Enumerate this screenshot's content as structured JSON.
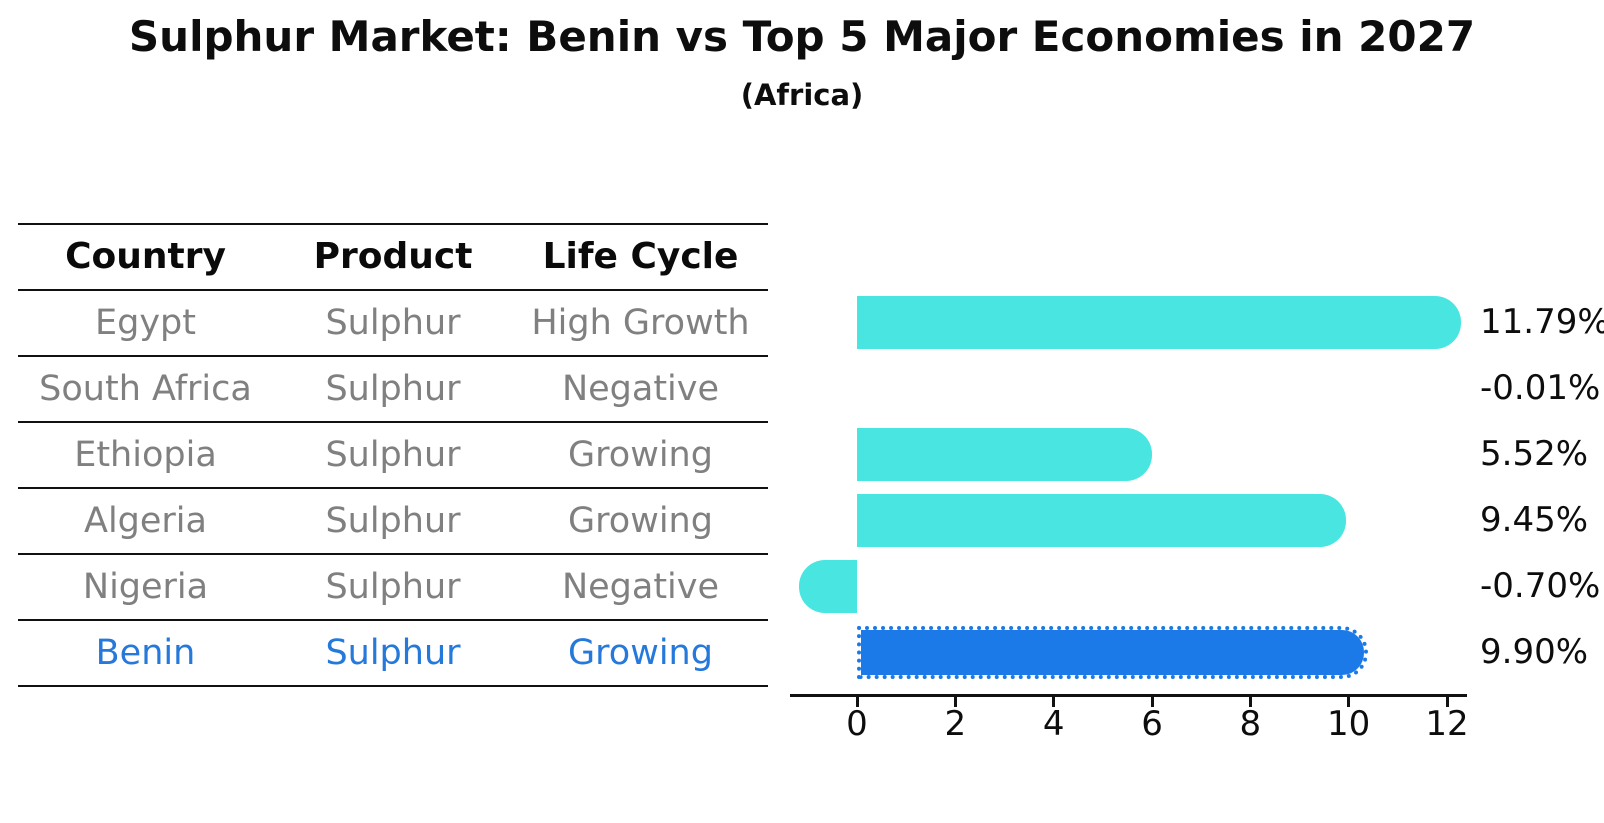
{
  "title": "Sulphur Market: Benin vs Top 5 Major Economies in 2027",
  "subtitle": "(Africa)",
  "table": {
    "headers": [
      "Country",
      "Product",
      "Life Cycle"
    ],
    "rows": [
      {
        "country": "Egypt",
        "product": "Sulphur",
        "life_cycle": "High Growth",
        "highlight": false
      },
      {
        "country": "South Africa",
        "product": "Sulphur",
        "life_cycle": "Negative",
        "highlight": false
      },
      {
        "country": "Ethiopia",
        "product": "Sulphur",
        "life_cycle": "Growing",
        "highlight": false
      },
      {
        "country": "Algeria",
        "product": "Sulphur",
        "life_cycle": "Growing",
        "highlight": false
      },
      {
        "country": "Nigeria",
        "product": "Sulphur",
        "life_cycle": "Negative",
        "highlight": false
      },
      {
        "country": "Benin",
        "product": "Sulphur",
        "life_cycle": "Growing",
        "highlight": true
      }
    ]
  },
  "chart_data": {
    "type": "bar",
    "orientation": "horizontal",
    "categories": [
      "Egypt",
      "South Africa",
      "Ethiopia",
      "Algeria",
      "Nigeria",
      "Benin"
    ],
    "values": [
      11.79,
      -0.01,
      5.52,
      9.45,
      -0.7,
      9.9
    ],
    "value_labels": [
      "11.79%",
      "-0.01%",
      "5.52%",
      "9.45%",
      "-0.70%",
      "9.90%"
    ],
    "highlight_index": 5,
    "xticks": [
      0,
      2,
      4,
      6,
      8,
      10,
      12
    ],
    "xlim": [
      -1.4,
      12.4
    ],
    "grid": false,
    "legend": null,
    "bar_color": "#48E5E1",
    "highlight_color": "#1B79E8",
    "highlight_text_color": "#2579DB",
    "row_text_color": "#808080",
    "value_label_color": "#0d0d0d"
  }
}
